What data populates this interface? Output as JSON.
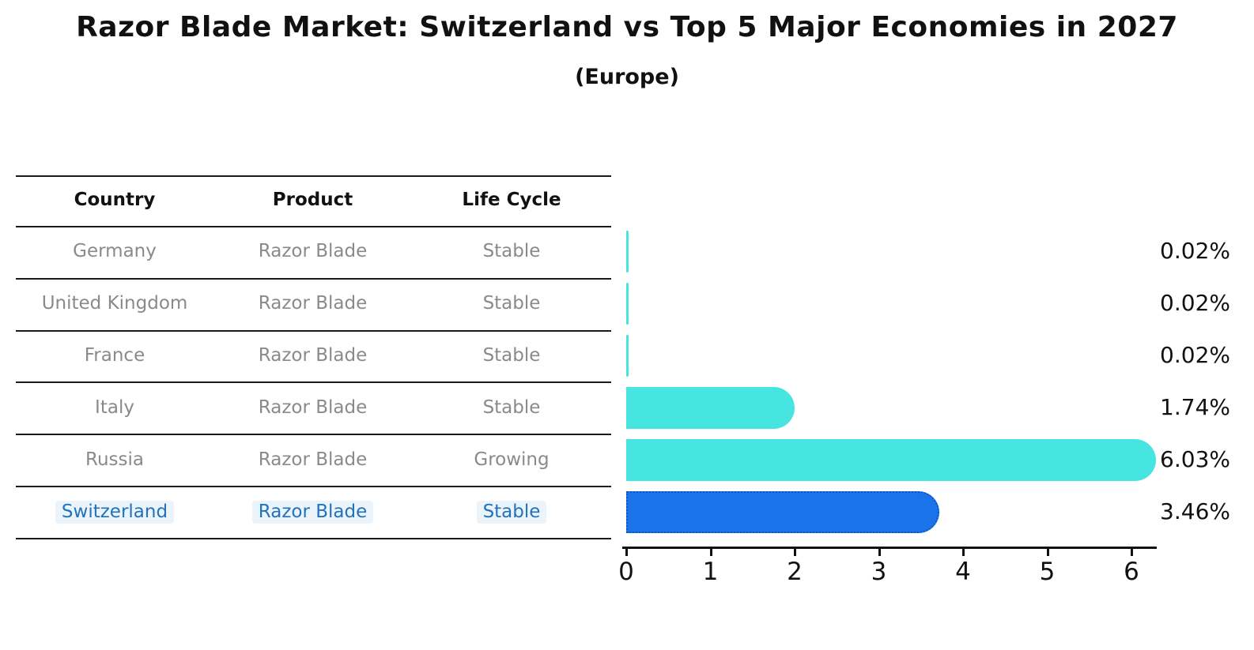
{
  "title": "Razor Blade Market: Switzerland vs Top 5 Major Economies in 2027",
  "subtitle": "(Europe)",
  "table": {
    "headers": [
      "Country",
      "Product",
      "Life Cycle"
    ],
    "rows": [
      {
        "country": "Germany",
        "product": "Razor Blade",
        "life_cycle": "Stable",
        "highlight": false
      },
      {
        "country": "United Kingdom",
        "product": "Razor Blade",
        "life_cycle": "Stable",
        "highlight": false
      },
      {
        "country": "France",
        "product": "Razor Blade",
        "life_cycle": "Stable",
        "highlight": false
      },
      {
        "country": "Italy",
        "product": "Razor Blade",
        "life_cycle": "Stable",
        "highlight": false
      },
      {
        "country": "Russia",
        "product": "Razor Blade",
        "life_cycle": "Growing",
        "highlight": false
      },
      {
        "country": "Switzerland",
        "product": "Razor Blade",
        "life_cycle": "Stable",
        "highlight": true
      }
    ]
  },
  "chart_data": {
    "type": "bar",
    "orientation": "horizontal",
    "title": "Razor Blade Market: Switzerland vs Top 5 Major Economies in 2027",
    "subtitle": "(Europe)",
    "categories": [
      "Germany",
      "United Kingdom",
      "France",
      "Italy",
      "Russia",
      "Switzerland"
    ],
    "values": [
      0.02,
      0.02,
      0.02,
      1.74,
      6.03,
      3.46
    ],
    "value_labels": [
      "0.02%",
      "0.02%",
      "0.02%",
      "1.74%",
      "6.03%",
      "3.46%"
    ],
    "xlabel": "",
    "ylabel": "",
    "xlim": [
      0,
      6.3
    ],
    "x_ticks": [
      "0",
      "1",
      "2",
      "3",
      "4",
      "5",
      "6"
    ],
    "grid": false,
    "legend": false
  },
  "colors": {
    "bar_default": "#46e5e2",
    "bar_highlight_fill": "#1a73e8",
    "bar_highlight_border": "#0d57c2",
    "highlight_text": "#2173be",
    "table_text": "#8a8a8a",
    "header_text": "#111111",
    "line": "#1a1a1a"
  }
}
